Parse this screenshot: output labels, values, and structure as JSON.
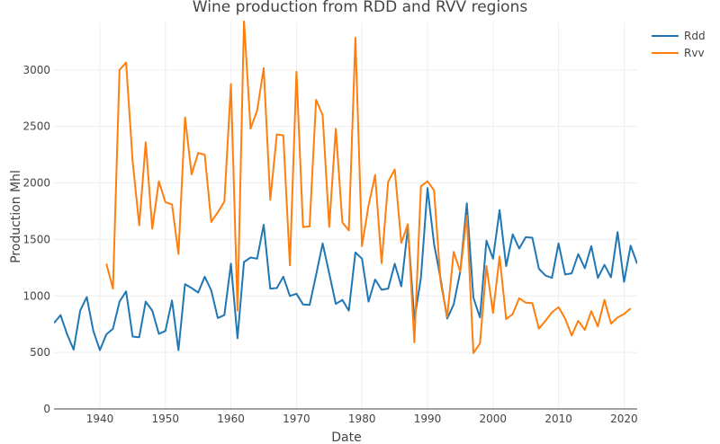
{
  "chart_data": {
    "type": "line",
    "title": "Wine production from RDD and RVV regions",
    "xlabel": "Date",
    "ylabel": "Production Mhl",
    "xlim": [
      1933,
      2022
    ],
    "ylim": [
      0,
      3420
    ],
    "xticks": [
      1940,
      1950,
      1960,
      1970,
      1980,
      1990,
      2000,
      2010,
      2020
    ],
    "yticks": [
      0,
      500,
      1000,
      1500,
      2000,
      2500,
      3000
    ],
    "grid": true,
    "legend": "top-right",
    "series": [
      {
        "name": "Rdd",
        "color": "#1f77b4",
        "x": [
          1933,
          1934,
          1935,
          1936,
          1937,
          1938,
          1939,
          1940,
          1941,
          1942,
          1943,
          1944,
          1945,
          1946,
          1947,
          1948,
          1949,
          1950,
          1951,
          1952,
          1953,
          1954,
          1955,
          1956,
          1957,
          1958,
          1959,
          1960,
          1961,
          1962,
          1963,
          1964,
          1965,
          1966,
          1967,
          1968,
          1969,
          1970,
          1971,
          1972,
          1973,
          1974,
          1975,
          1976,
          1977,
          1978,
          1979,
          1980,
          1981,
          1982,
          1983,
          1984,
          1985,
          1986,
          1987,
          1988,
          1989,
          1990,
          1991,
          1992,
          1993,
          1994,
          1995,
          1996,
          1997,
          1998,
          1999,
          2000,
          2001,
          2002,
          2003,
          2004,
          2005,
          2006,
          2007,
          2008,
          2009,
          2010,
          2011,
          2012,
          2013,
          2014,
          2015,
          2016,
          2017,
          2018,
          2019,
          2020,
          2021,
          2022
        ],
        "values": [
          760,
          830,
          660,
          525,
          870,
          990,
          690,
          520,
          660,
          710,
          950,
          1040,
          640,
          635,
          950,
          870,
          665,
          690,
          960,
          520,
          1105,
          1070,
          1030,
          1170,
          1050,
          805,
          830,
          1285,
          625,
          1300,
          1340,
          1330,
          1630,
          1065,
          1070,
          1170,
          1000,
          1020,
          925,
          920,
          1185,
          1465,
          1200,
          930,
          965,
          870,
          1385,
          1330,
          950,
          1145,
          1055,
          1065,
          1285,
          1085,
          1605,
          790,
          1160,
          1955,
          1460,
          1150,
          800,
          925,
          1215,
          1820,
          985,
          810,
          1490,
          1330,
          1760,
          1265,
          1545,
          1420,
          1520,
          1515,
          1240,
          1180,
          1160,
          1465,
          1190,
          1200,
          1370,
          1245,
          1440,
          1160,
          1275,
          1165,
          1565,
          1125,
          1445,
          1285
        ]
      },
      {
        "name": "Rvv",
        "color": "#ff7f0e",
        "x": [
          1941,
          1942,
          1943,
          1944,
          1945,
          1946,
          1947,
          1948,
          1949,
          1950,
          1951,
          1952,
          1953,
          1954,
          1955,
          1956,
          1957,
          1958,
          1959,
          1960,
          1961,
          1962,
          1963,
          1964,
          1965,
          1966,
          1967,
          1968,
          1969,
          1970,
          1971,
          1972,
          1973,
          1974,
          1975,
          1976,
          1977,
          1978,
          1979,
          1980,
          1981,
          1982,
          1983,
          1984,
          1985,
          1986,
          1987,
          1988,
          1989,
          1990,
          1991,
          1992,
          1993,
          1994,
          1995,
          1996,
          1997,
          1998,
          1999,
          2000,
          2001,
          2002,
          2003,
          2004,
          2005,
          2006,
          2007,
          2008,
          2009,
          2010,
          2011,
          2012,
          2013,
          2014,
          2015,
          2016,
          2017,
          2018,
          2019,
          2020,
          2021
        ],
        "values": [
          1285,
          1065,
          3000,
          3065,
          2190,
          1625,
          2360,
          1595,
          2015,
          1830,
          1810,
          1370,
          2580,
          2075,
          2265,
          2250,
          1655,
          1740,
          1835,
          2875,
          870,
          3440,
          2480,
          2640,
          3015,
          1850,
          2430,
          2420,
          1270,
          2985,
          1610,
          1615,
          2735,
          2600,
          1610,
          2480,
          1650,
          1580,
          3285,
          1440,
          1800,
          2070,
          1290,
          2010,
          2120,
          1470,
          1635,
          590,
          1970,
          2015,
          1935,
          1120,
          815,
          1390,
          1215,
          1710,
          495,
          580,
          1265,
          850,
          1350,
          795,
          840,
          980,
          940,
          935,
          710,
          780,
          855,
          900,
          800,
          650,
          780,
          700,
          865,
          730,
          965,
          755,
          810,
          840,
          890
        ]
      }
    ]
  }
}
